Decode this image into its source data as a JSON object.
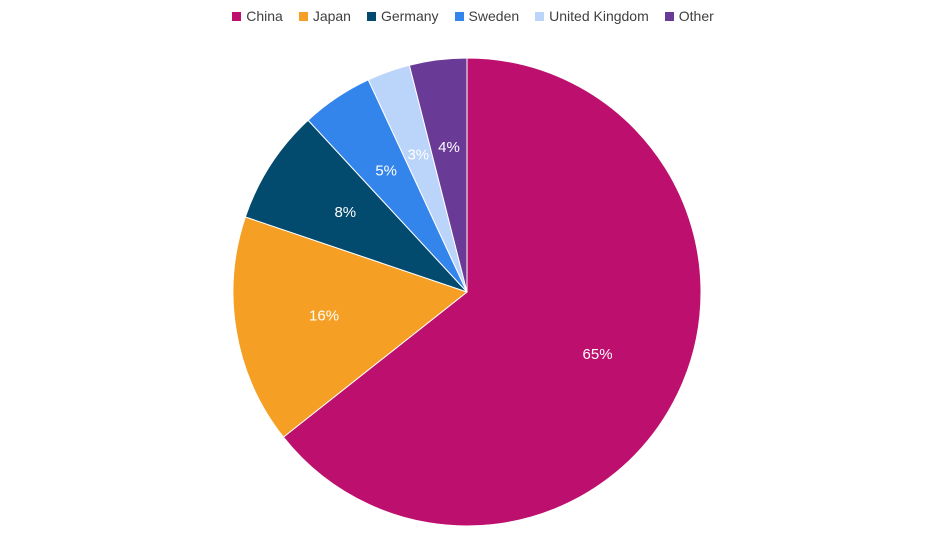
{
  "chart_data": {
    "type": "pie",
    "categories": [
      "China",
      "Japan",
      "Germany",
      "Sweden",
      "United Kingdom",
      "Other"
    ],
    "values": [
      65,
      16,
      8,
      5,
      3,
      4
    ],
    "labels": [
      "65%",
      "16%",
      "8%",
      "5%",
      "3%",
      "4%"
    ],
    "colors": [
      "#BC0F6E",
      "#F5A025",
      "#024A6E",
      "#3485EB",
      "#BBD4F9",
      "#6A3A97"
    ],
    "legend_position": "top",
    "start_angle": "12 o'clock",
    "direction": "clockwise"
  }
}
